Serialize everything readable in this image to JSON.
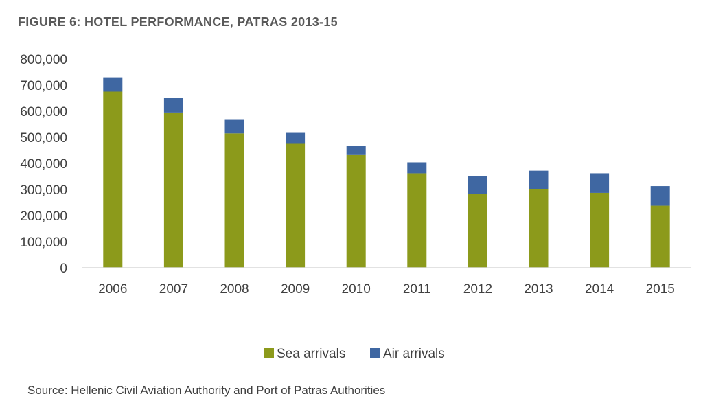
{
  "title": "FIGURE 6: HOTEL PERFORMANCE, PATRAS 2013-15",
  "source": "Source: Hellenic Civil Aviation Authority and Port of Patras Authorities",
  "chart_data": {
    "type": "bar",
    "stacked": true,
    "categories": [
      "2006",
      "2007",
      "2008",
      "2009",
      "2010",
      "2011",
      "2012",
      "2013",
      "2014",
      "2015"
    ],
    "series": [
      {
        "name": "Sea arrivals",
        "color": "#8c9a1b",
        "values": [
          675000,
          595000,
          515000,
          475000,
          432000,
          362000,
          282000,
          302000,
          287000,
          238000
        ]
      },
      {
        "name": "Air arrivals",
        "color": "#3f67a2",
        "values": [
          55000,
          55000,
          52000,
          42000,
          36000,
          42000,
          68000,
          70000,
          75000,
          75000
        ]
      }
    ],
    "ylim": [
      0,
      800000
    ],
    "yticks": [
      "0",
      "100,000",
      "200,000",
      "300,000",
      "400,000",
      "500,000",
      "600,000",
      "700,000",
      "800,000"
    ],
    "xlabel": "",
    "ylabel": "",
    "grid": false,
    "legend_position": "bottom"
  }
}
